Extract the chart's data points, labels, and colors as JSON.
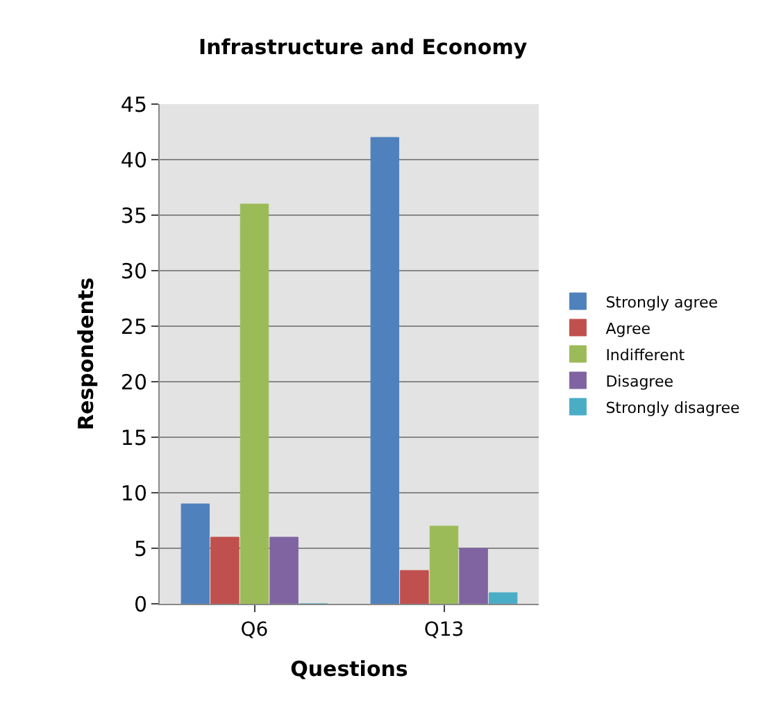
{
  "chart_data": {
    "type": "bar",
    "title": "Infrastructure and Economy",
    "xlabel": "Questions",
    "ylabel": "Respondents",
    "categories": [
      "Q6",
      "Q13"
    ],
    "series": [
      {
        "name": "Strongly agree",
        "color": "#4f81bd",
        "values": [
          9,
          42
        ]
      },
      {
        "name": "Agree",
        "color": "#c0504d",
        "values": [
          6,
          3
        ]
      },
      {
        "name": "Indifferent",
        "color": "#9bbb59",
        "values": [
          36,
          7
        ]
      },
      {
        "name": "Disagree",
        "color": "#8064a2",
        "values": [
          6,
          5
        ]
      },
      {
        "name": "Strongly disagree",
        "color": "#4bacc6",
        "values": [
          0,
          1
        ]
      }
    ],
    "ylim": [
      0,
      45
    ],
    "yticks": [
      0,
      5,
      10,
      15,
      20,
      25,
      30,
      35,
      40,
      45
    ],
    "grid": "y",
    "legend": "right"
  }
}
